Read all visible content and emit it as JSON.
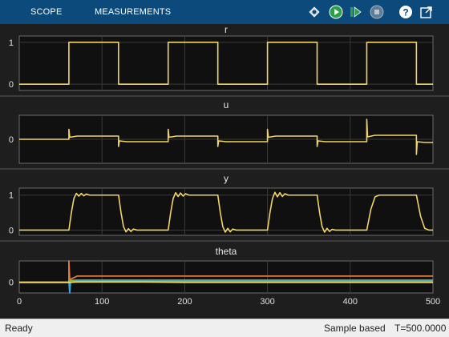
{
  "toolbar": {
    "tabs": [
      "SCOPE",
      "MEASUREMENTS"
    ],
    "icons": [
      "signal-select-icon",
      "run-icon",
      "step-forward-icon",
      "stop-icon",
      "help-icon",
      "undock-icon"
    ]
  },
  "colors": {
    "toolbar_bg": "#0b4a7a",
    "panel_bg": "#1e1e1e",
    "axes_bg": "#101010",
    "signal_yellow": "#f2d562",
    "theta_orange": "#e07a3c",
    "theta_green": "#7fbf3f",
    "theta_blue": "#3aa7d8"
  },
  "chart_data": [
    {
      "type": "line",
      "title": "r",
      "ylim": [
        -0.15,
        1.15
      ],
      "yticks": [
        "0",
        "1"
      ],
      "yticks_values": [
        0,
        1
      ],
      "xlim": [
        0,
        500
      ],
      "grid": true,
      "series": [
        {
          "points": [
            [
              0,
              0
            ],
            [
              60,
              0
            ],
            [
              60,
              1
            ],
            [
              120,
              1
            ],
            [
              120,
              0
            ],
            [
              180,
              0
            ],
            [
              180,
              1
            ],
            [
              240,
              1
            ],
            [
              240,
              0
            ],
            [
              300,
              0
            ],
            [
              300,
              1
            ],
            [
              360,
              1
            ],
            [
              360,
              0
            ],
            [
              420,
              0
            ],
            [
              420,
              1
            ],
            [
              480,
              1
            ],
            [
              480,
              0
            ],
            [
              500,
              0
            ]
          ]
        }
      ]
    },
    {
      "type": "line",
      "title": "u",
      "ylim": [
        -0.6,
        0.6
      ],
      "yticks": [
        "0"
      ],
      "yticks_values": [
        0
      ],
      "xlim": [
        0,
        500
      ],
      "grid": true,
      "series": [
        {
          "points": [
            [
              0,
              0
            ],
            [
              60,
              0
            ],
            [
              60,
              0.25
            ],
            [
              61,
              0.05
            ],
            [
              70,
              0.08
            ],
            [
              120,
              0.08
            ],
            [
              120,
              -0.18
            ],
            [
              121,
              -0.04
            ],
            [
              130,
              -0.06
            ],
            [
              180,
              -0.06
            ],
            [
              180,
              0.25
            ],
            [
              181,
              0.05
            ],
            [
              190,
              0.08
            ],
            [
              240,
              0.08
            ],
            [
              240,
              -0.18
            ],
            [
              241,
              -0.04
            ],
            [
              250,
              -0.06
            ],
            [
              300,
              -0.06
            ],
            [
              300,
              0.25
            ],
            [
              301,
              0.05
            ],
            [
              310,
              0.08
            ],
            [
              360,
              0.08
            ],
            [
              360,
              -0.18
            ],
            [
              361,
              -0.04
            ],
            [
              370,
              -0.06
            ],
            [
              420,
              -0.06
            ],
            [
              420,
              0.5
            ],
            [
              421,
              0.06
            ],
            [
              430,
              0.1
            ],
            [
              480,
              0.1
            ],
            [
              480,
              -0.38
            ],
            [
              481,
              -0.06
            ],
            [
              490,
              -0.08
            ],
            [
              500,
              -0.08
            ]
          ]
        }
      ]
    },
    {
      "type": "line",
      "title": "y",
      "ylim": [
        -0.15,
        1.2
      ],
      "yticks": [
        "0",
        "1"
      ],
      "yticks_values": [
        0,
        1
      ],
      "xlim": [
        0,
        500
      ],
      "grid": true,
      "series": [
        {
          "points": [
            [
              0,
              0
            ],
            [
              60,
              0
            ],
            [
              63,
              0.5
            ],
            [
              66,
              0.9
            ],
            [
              69,
              1.05
            ],
            [
              72,
              0.97
            ],
            [
              75,
              1.05
            ],
            [
              78,
              0.98
            ],
            [
              81,
              1.03
            ],
            [
              85,
              1.0
            ],
            [
              120,
              1.0
            ],
            [
              123,
              0.5
            ],
            [
              126,
              0.1
            ],
            [
              129,
              -0.05
            ],
            [
              132,
              0.04
            ],
            [
              135,
              -0.04
            ],
            [
              138,
              0.03
            ],
            [
              142,
              0.0
            ],
            [
              180,
              0.0
            ],
            [
              183,
              0.5
            ],
            [
              186,
              0.9
            ],
            [
              189,
              1.07
            ],
            [
              192,
              0.96
            ],
            [
              195,
              1.06
            ],
            [
              198,
              0.97
            ],
            [
              201,
              1.04
            ],
            [
              205,
              1.0
            ],
            [
              240,
              1.0
            ],
            [
              243,
              0.5
            ],
            [
              246,
              0.1
            ],
            [
              249,
              -0.06
            ],
            [
              252,
              0.05
            ],
            [
              255,
              -0.05
            ],
            [
              258,
              0.03
            ],
            [
              262,
              0.0
            ],
            [
              300,
              0.0
            ],
            [
              303,
              0.5
            ],
            [
              306,
              0.9
            ],
            [
              309,
              1.08
            ],
            [
              312,
              0.95
            ],
            [
              315,
              1.07
            ],
            [
              318,
              0.96
            ],
            [
              321,
              1.04
            ],
            [
              325,
              1.0
            ],
            [
              360,
              1.0
            ],
            [
              363,
              0.5
            ],
            [
              366,
              0.1
            ],
            [
              369,
              -0.06
            ],
            [
              372,
              0.05
            ],
            [
              375,
              -0.04
            ],
            [
              378,
              0.02
            ],
            [
              382,
              0.0
            ],
            [
              420,
              0.0
            ],
            [
              425,
              0.6
            ],
            [
              430,
              0.95
            ],
            [
              435,
              1.0
            ],
            [
              480,
              1.0
            ],
            [
              485,
              0.4
            ],
            [
              490,
              0.05
            ],
            [
              495,
              0.0
            ],
            [
              500,
              0.0
            ]
          ]
        }
      ]
    },
    {
      "type": "line",
      "title": "theta",
      "ylim": [
        -0.6,
        1.2
      ],
      "yticks": [
        "0"
      ],
      "yticks_values": [
        0
      ],
      "xlim": [
        0,
        500
      ],
      "xticks": [
        "0",
        "100",
        "200",
        "300",
        "400",
        "500"
      ],
      "xticks_values": [
        0,
        100,
        200,
        300,
        400,
        500
      ],
      "grid": true,
      "series": [
        {
          "color": "#e07a3c",
          "points": [
            [
              0,
              0
            ],
            [
              60,
              0
            ],
            [
              60,
              1.2
            ],
            [
              61,
              0.15
            ],
            [
              70,
              0.35
            ],
            [
              500,
              0.35
            ]
          ]
        },
        {
          "color": "#7fbf3f",
          "points": [
            [
              0,
              0
            ],
            [
              60,
              0
            ],
            [
              61,
              0.1
            ],
            [
              70,
              0.12
            ],
            [
              500,
              0.12
            ]
          ]
        },
        {
          "color": "#3aa7d8",
          "points": [
            [
              0,
              0
            ],
            [
              60,
              0
            ],
            [
              61,
              -0.6
            ],
            [
              62,
              0.02
            ],
            [
              70,
              0.06
            ],
            [
              500,
              0.06
            ]
          ]
        },
        {
          "color": "#f2d562",
          "points": [
            [
              0,
              0
            ],
            [
              60,
              0
            ],
            [
              61,
              0.0
            ],
            [
              70,
              0.02
            ],
            [
              150,
              0.02
            ],
            [
              200,
              0.0
            ],
            [
              500,
              0.0
            ]
          ]
        }
      ]
    }
  ],
  "status": {
    "left": "Ready",
    "mode": "Sample based",
    "time": "T=500.0000"
  }
}
